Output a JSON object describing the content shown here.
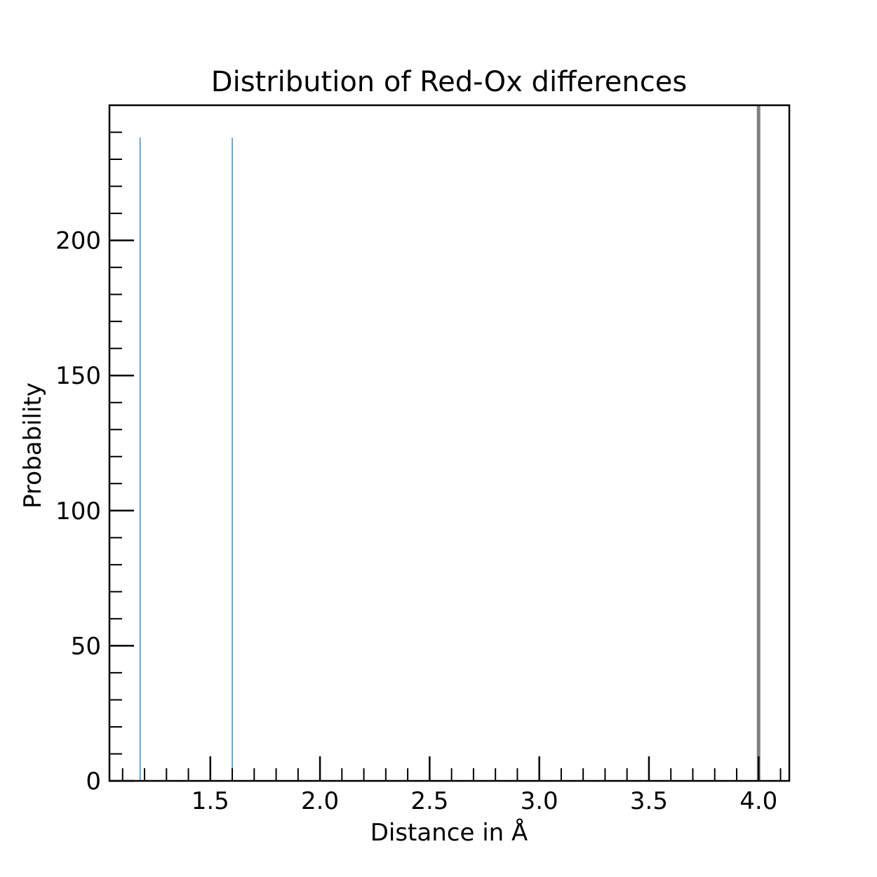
{
  "chart_data": {
    "type": "bar",
    "title": "Distribution of Red-Ox differences",
    "xlabel": "Distance in Å",
    "ylabel": "Probability",
    "xlim": [
      1.04,
      4.14
    ],
    "ylim": [
      0,
      250
    ],
    "grid": false,
    "x_major_ticks": [
      1.5,
      2.0,
      2.5,
      3.0,
      3.5,
      4.0
    ],
    "x_tick_labels": [
      "1.5",
      "2.0",
      "2.5",
      "3.0",
      "3.5",
      "4.0"
    ],
    "x_minor_step": 0.1,
    "y_major_ticks": [
      0,
      50,
      100,
      150,
      200
    ],
    "y_tick_labels": [
      "0",
      "50",
      "100",
      "150",
      "200"
    ],
    "y_minor_step": 10,
    "bars": [
      {
        "x": 1.18,
        "value": 238
      },
      {
        "x": 1.6,
        "value": 238
      }
    ],
    "bar_color": "#1f77b4",
    "reference_line": {
      "x": 4.0,
      "color": "#808080"
    }
  }
}
